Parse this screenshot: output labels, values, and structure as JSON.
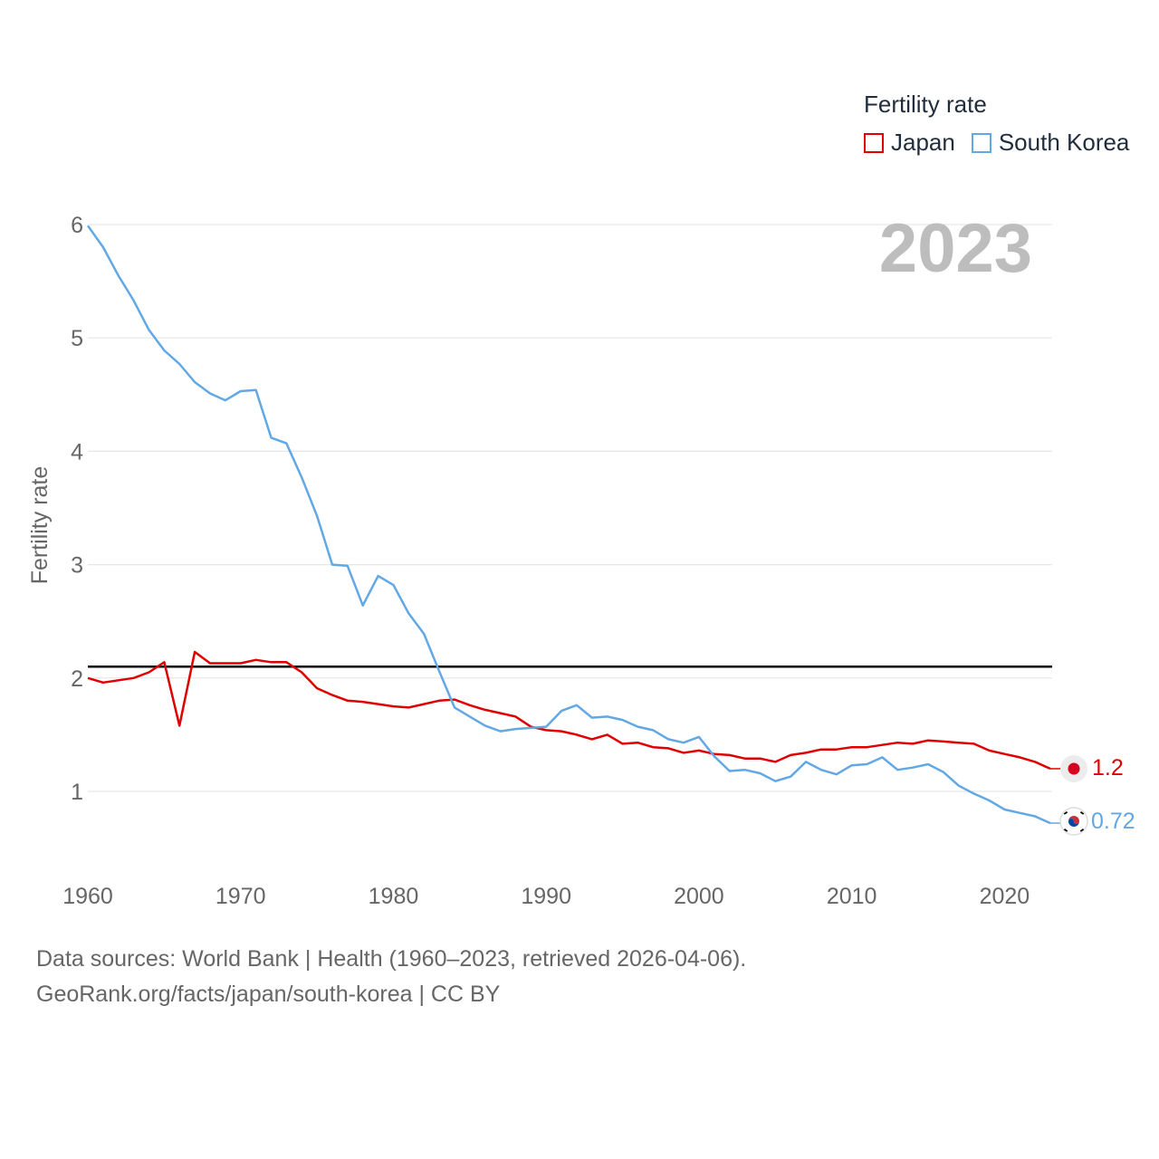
{
  "legend": {
    "title": "Fertility rate",
    "items": [
      {
        "label": "Japan",
        "color": "#e00000"
      },
      {
        "label": "South Korea",
        "color": "#62a8e5"
      }
    ]
  },
  "footer": {
    "line1": "Data sources: World Bank | Health (1960–2023, retrieved 2026-04-06).",
    "line2": "GeoRank.org/facts/japan/south-korea | CC BY"
  },
  "chart_data": {
    "type": "line",
    "title": "Fertility rate",
    "year_label": "2023",
    "xlabel": "",
    "ylabel": "Fertility rate",
    "xlim": [
      1960,
      2023
    ],
    "ylim": [
      0.5,
      6.1
    ],
    "x_ticks": [
      1960,
      1970,
      1980,
      1990,
      2000,
      2010,
      2020
    ],
    "y_ticks": [
      1,
      2,
      3,
      4,
      5,
      6
    ],
    "reference_line": {
      "value": 2.1,
      "color": "#000000"
    },
    "x": [
      1960,
      1961,
      1962,
      1963,
      1964,
      1965,
      1966,
      1967,
      1968,
      1969,
      1970,
      1971,
      1972,
      1973,
      1974,
      1975,
      1976,
      1977,
      1978,
      1979,
      1980,
      1981,
      1982,
      1983,
      1984,
      1985,
      1986,
      1987,
      1988,
      1989,
      1990,
      1991,
      1992,
      1993,
      1994,
      1995,
      1996,
      1997,
      1998,
      1999,
      2000,
      2001,
      2002,
      2003,
      2004,
      2005,
      2006,
      2007,
      2008,
      2009,
      2010,
      2011,
      2012,
      2013,
      2014,
      2015,
      2016,
      2017,
      2018,
      2019,
      2020,
      2021,
      2022,
      2023
    ],
    "series": [
      {
        "name": "Japan",
        "color": "#e00000",
        "end_label": "1.2",
        "values": [
          2.0,
          1.96,
          1.98,
          2.0,
          2.05,
          2.14,
          1.58,
          2.23,
          2.13,
          2.13,
          2.13,
          2.16,
          2.14,
          2.14,
          2.05,
          1.91,
          1.85,
          1.8,
          1.79,
          1.77,
          1.75,
          1.74,
          1.77,
          1.8,
          1.81,
          1.76,
          1.72,
          1.69,
          1.66,
          1.57,
          1.54,
          1.53,
          1.5,
          1.46,
          1.5,
          1.42,
          1.43,
          1.39,
          1.38,
          1.34,
          1.36,
          1.33,
          1.32,
          1.29,
          1.29,
          1.26,
          1.32,
          1.34,
          1.37,
          1.37,
          1.39,
          1.39,
          1.41,
          1.43,
          1.42,
          1.45,
          1.44,
          1.43,
          1.42,
          1.36,
          1.33,
          1.3,
          1.26,
          1.2
        ]
      },
      {
        "name": "South Korea",
        "color": "#62a8e5",
        "end_label": "0.72",
        "values": [
          5.99,
          5.8,
          5.55,
          5.33,
          5.07,
          4.89,
          4.77,
          4.61,
          4.51,
          4.45,
          4.53,
          4.54,
          4.12,
          4.07,
          3.77,
          3.43,
          3.0,
          2.99,
          2.64,
          2.9,
          2.82,
          2.57,
          2.39,
          2.06,
          1.74,
          1.66,
          1.58,
          1.53,
          1.55,
          1.56,
          1.57,
          1.71,
          1.76,
          1.65,
          1.66,
          1.63,
          1.57,
          1.54,
          1.46,
          1.43,
          1.48,
          1.31,
          1.18,
          1.19,
          1.16,
          1.09,
          1.13,
          1.26,
          1.19,
          1.15,
          1.23,
          1.24,
          1.3,
          1.19,
          1.21,
          1.24,
          1.17,
          1.05,
          0.98,
          0.92,
          0.84,
          0.81,
          0.78,
          0.72
        ]
      }
    ]
  }
}
